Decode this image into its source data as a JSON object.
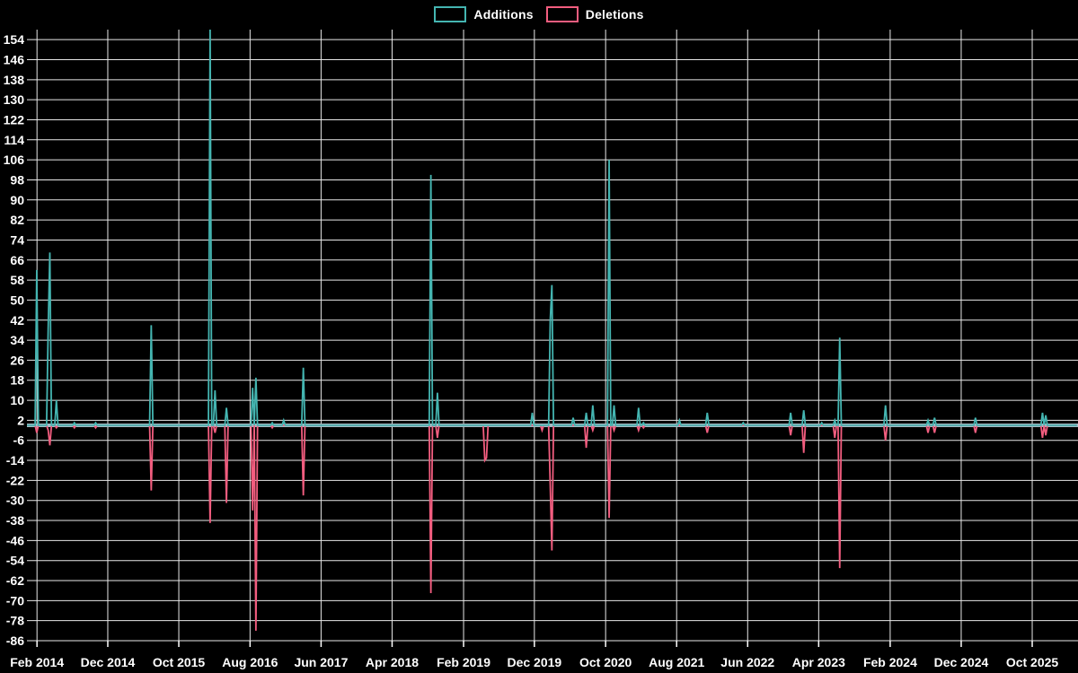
{
  "legend": {
    "additions_label": "Additions",
    "deletions_label": "Deletions"
  },
  "colors": {
    "background": "#000000",
    "additions": "#44b5b1",
    "deletions": "#f25d7f",
    "zero_line": "#a4bcc6",
    "grid": "#e8e8e8",
    "text": "#ffffff"
  },
  "chart_data": {
    "type": "line",
    "title": "",
    "subtitle": "",
    "description": "Weekly code-frequency style chart: additions (teal) above zero, deletions (pink) below zero; flat at 0 between spike events. Tallest additions spike is clipped at the top of the plot (> 154).",
    "legend_position": "top-center",
    "grid": true,
    "baseline": 0,
    "x_axis": {
      "domain": [
        "2013-12-20",
        "2026-04-15"
      ],
      "ticks": [
        {
          "label": "Feb 2014",
          "date": "2014-02-01"
        },
        {
          "label": "Dec 2014",
          "date": "2014-12-01"
        },
        {
          "label": "Oct 2015",
          "date": "2015-10-01"
        },
        {
          "label": "Aug 2016",
          "date": "2016-08-01"
        },
        {
          "label": "Jun 2017",
          "date": "2017-06-01"
        },
        {
          "label": "Apr 2018",
          "date": "2018-04-01"
        },
        {
          "label": "Feb 2019",
          "date": "2019-02-01"
        },
        {
          "label": "Dec 2019",
          "date": "2019-12-01"
        },
        {
          "label": "Oct 2020",
          "date": "2020-10-01"
        },
        {
          "label": "Aug 2021",
          "date": "2021-08-01"
        },
        {
          "label": "Jun 2022",
          "date": "2022-06-01"
        },
        {
          "label": "Apr 2023",
          "date": "2023-04-01"
        },
        {
          "label": "Feb 2024",
          "date": "2024-02-01"
        },
        {
          "label": "Dec 2024",
          "date": "2024-12-01"
        },
        {
          "label": "Oct 2025",
          "date": "2025-10-01"
        }
      ]
    },
    "y_axis": {
      "range": [
        -86,
        158
      ],
      "tick_step": 8,
      "ticks": [
        154,
        146,
        138,
        130,
        122,
        114,
        106,
        98,
        90,
        82,
        74,
        66,
        58,
        50,
        42,
        34,
        26,
        18,
        10,
        2,
        -6,
        -14,
        -22,
        -30,
        -38,
        -46,
        -54,
        -62,
        -70,
        -78,
        -86
      ]
    },
    "series": [
      {
        "name": "Additions",
        "color_key": "additions",
        "default_value": 0,
        "points": [
          [
            "2014-02-02",
            62
          ],
          [
            "2014-03-23",
            39
          ],
          [
            "2014-03-30",
            69
          ],
          [
            "2014-04-27",
            10
          ],
          [
            "2014-07-13",
            1
          ],
          [
            "2014-10-12",
            1
          ],
          [
            "2015-06-07",
            40
          ],
          [
            "2016-02-14",
            158
          ],
          [
            "2016-03-06",
            14
          ],
          [
            "2016-04-24",
            7
          ],
          [
            "2016-08-14",
            15
          ],
          [
            "2016-08-28",
            19
          ],
          [
            "2016-11-06",
            1
          ],
          [
            "2016-12-25",
            2
          ],
          [
            "2017-03-19",
            23
          ],
          [
            "2018-09-16",
            100
          ],
          [
            "2018-10-14",
            13
          ],
          [
            "2019-11-24",
            5
          ],
          [
            "2020-02-09",
            42
          ],
          [
            "2020-02-16",
            56
          ],
          [
            "2020-05-17",
            3
          ],
          [
            "2020-07-12",
            5
          ],
          [
            "2020-08-09",
            8
          ],
          [
            "2020-10-18",
            106
          ],
          [
            "2020-11-08",
            8
          ],
          [
            "2021-02-21",
            7
          ],
          [
            "2021-03-14",
            1
          ],
          [
            "2021-08-15",
            2
          ],
          [
            "2021-12-12",
            5
          ],
          [
            "2022-05-15",
            1
          ],
          [
            "2022-12-04",
            5
          ],
          [
            "2023-01-29",
            6
          ],
          [
            "2023-04-16",
            1
          ],
          [
            "2023-06-11",
            2
          ],
          [
            "2023-07-02",
            35
          ],
          [
            "2024-01-14",
            8
          ],
          [
            "2024-07-14",
            2
          ],
          [
            "2024-08-11",
            3
          ],
          [
            "2025-02-02",
            3
          ],
          [
            "2025-11-16",
            5
          ],
          [
            "2025-11-30",
            4
          ]
        ]
      },
      {
        "name": "Deletions",
        "color_key": "deletions",
        "default_value": 0,
        "points": [
          [
            "2014-02-02",
            -3
          ],
          [
            "2014-03-23",
            -2
          ],
          [
            "2014-03-30",
            -8
          ],
          [
            "2014-04-27",
            -1
          ],
          [
            "2014-07-13",
            -1
          ],
          [
            "2014-10-12",
            -1
          ],
          [
            "2015-06-07",
            -26
          ],
          [
            "2016-02-14",
            -39
          ],
          [
            "2016-03-06",
            -3
          ],
          [
            "2016-04-24",
            -31
          ],
          [
            "2016-08-14",
            -34
          ],
          [
            "2016-08-28",
            -82
          ],
          [
            "2016-11-06",
            -1
          ],
          [
            "2017-03-19",
            -28
          ],
          [
            "2018-09-16",
            -67
          ],
          [
            "2018-10-14",
            -5
          ],
          [
            "2019-05-05",
            -14
          ],
          [
            "2019-05-12",
            -13
          ],
          [
            "2020-01-05",
            -2
          ],
          [
            "2020-02-09",
            -24
          ],
          [
            "2020-02-16",
            -50
          ],
          [
            "2020-07-12",
            -9
          ],
          [
            "2020-08-09",
            -2
          ],
          [
            "2020-10-18",
            -37
          ],
          [
            "2020-11-08",
            -2
          ],
          [
            "2021-02-21",
            -2
          ],
          [
            "2021-03-14",
            -1
          ],
          [
            "2021-12-12",
            -3
          ],
          [
            "2022-12-04",
            -4
          ],
          [
            "2023-01-29",
            -11
          ],
          [
            "2023-06-11",
            -5
          ],
          [
            "2023-07-02",
            -57
          ],
          [
            "2024-01-14",
            -6
          ],
          [
            "2024-07-14",
            -3
          ],
          [
            "2024-08-11",
            -3
          ],
          [
            "2025-02-02",
            -3
          ],
          [
            "2025-11-16",
            -5
          ],
          [
            "2025-11-30",
            -4
          ]
        ]
      }
    ]
  }
}
